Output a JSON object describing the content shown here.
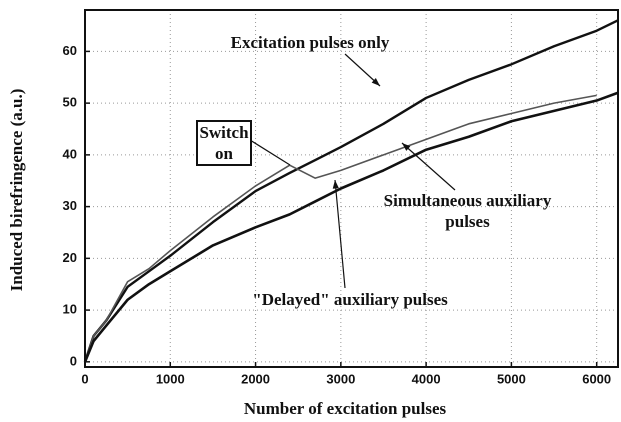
{
  "chart_data": {
    "type": "line",
    "xlabel": "Number of excitation pulses",
    "ylabel": "Induced birefringence (a.u.)",
    "x": [
      0,
      100,
      250,
      500,
      750,
      1000,
      1500,
      2000,
      2400,
      2700,
      3000,
      3500,
      4000,
      4500,
      5000,
      5500,
      6000,
      6250
    ],
    "series": [
      {
        "name": "Excitation pulses only",
        "color": "#111111",
        "width": 2.4,
        "values": [
          0,
          5,
          8,
          14.5,
          17.5,
          20.5,
          27,
          33,
          36.5,
          39,
          41.5,
          46,
          51,
          54.5,
          57.5,
          61,
          64,
          66
        ]
      },
      {
        "name": "\"Delayed\" auxiliary pulses",
        "color": "#555555",
        "width": 1.6,
        "values": [
          0,
          5,
          8,
          15.5,
          18,
          21.5,
          28,
          34,
          38,
          35.5,
          37,
          40,
          43,
          46,
          48,
          50,
          51.5,
          null
        ]
      },
      {
        "name": "Simultaneous auxiliary pulses",
        "color": "#111111",
        "width": 2.6,
        "values": [
          0,
          4,
          7,
          12,
          15,
          17.5,
          22.5,
          26,
          28.5,
          31,
          33.5,
          37,
          41,
          43.5,
          46.5,
          48.5,
          50.5,
          52
        ]
      }
    ],
    "annotations": [
      "Switch on"
    ],
    "xlim": [
      0,
      6250
    ],
    "xticks": [
      0,
      1000,
      2000,
      3000,
      4000,
      5000,
      6000
    ],
    "ylim": [
      -1,
      68
    ],
    "yticks": [
      0,
      10,
      20,
      30,
      40,
      50,
      60
    ],
    "grid": true
  }
}
